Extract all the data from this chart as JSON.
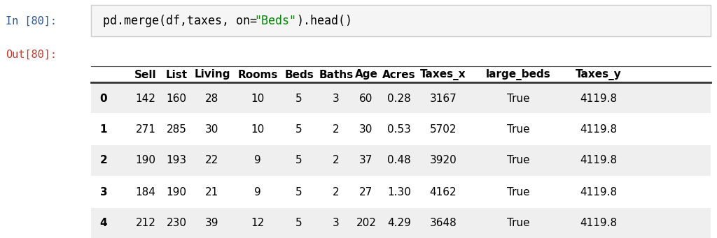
{
  "input_label": "In [80]:",
  "output_label": "Out[80]:",
  "code_part1": "pd.merge(df,taxes, on=",
  "code_part2": "\"Beds\"",
  "code_part3": ").head()",
  "columns": [
    "",
    "Sell",
    "List",
    "Living",
    "Rooms",
    "Beds",
    "Baths",
    "Age",
    "Acres",
    "Taxes_x",
    "large_beds",
    "Taxes_y"
  ],
  "rows": [
    [
      "0",
      "142",
      "160",
      "28",
      "10",
      "5",
      "3",
      "60",
      "0.28",
      "3167",
      "True",
      "4119.8"
    ],
    [
      "1",
      "271",
      "285",
      "30",
      "10",
      "5",
      "2",
      "30",
      "0.53",
      "5702",
      "True",
      "4119.8"
    ],
    [
      "2",
      "190",
      "193",
      "22",
      "9",
      "5",
      "2",
      "37",
      "0.48",
      "3920",
      "True",
      "4119.8"
    ],
    [
      "3",
      "184",
      "190",
      "21",
      "9",
      "5",
      "2",
      "27",
      "1.30",
      "4162",
      "True",
      "4119.8"
    ],
    [
      "4",
      "212",
      "230",
      "39",
      "12",
      "5",
      "3",
      "202",
      "4.29",
      "3648",
      "True",
      "4119.8"
    ]
  ],
  "bg_color": "#ffffff",
  "input_box_color": "#f5f5f5",
  "input_box_border": "#cccccc",
  "label_color_in": "#2b5797",
  "label_color_out": "#c0392b",
  "code_color": "#000000",
  "code_string_color": "#008800",
  "code_paren_color": "#008000",
  "separator_color": "#333333",
  "even_row_bg": "#efefef",
  "odd_row_bg": "#ffffff",
  "font_size_code": 12,
  "font_size_label": 11,
  "font_size_table": 11,
  "font_size_header": 11
}
